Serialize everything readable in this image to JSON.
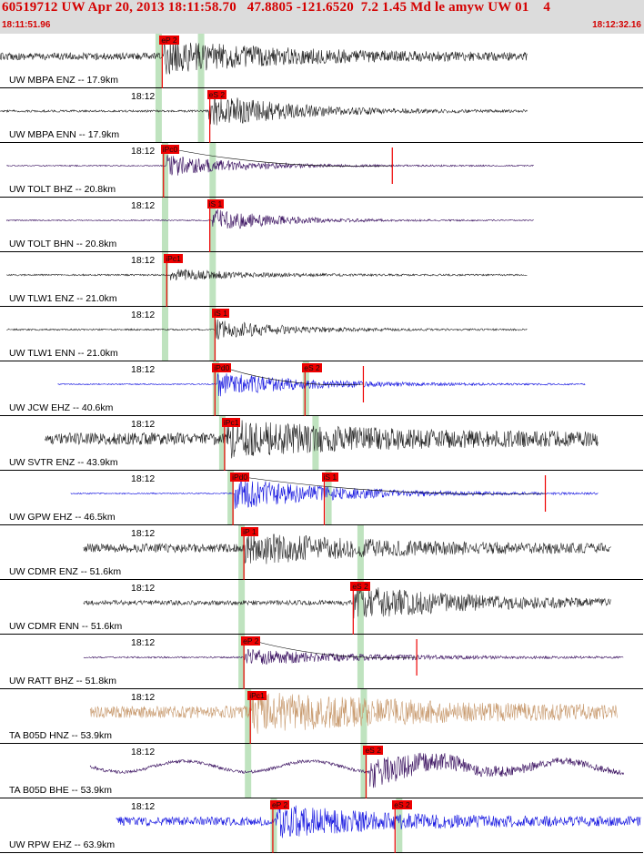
{
  "header": {
    "title": "60519712 UW Apr 20, 2013 18:11:58.70   47.8805 -121.6520  7.2 1.45 Md le amyw UW 01    4",
    "time_start": "18:11:51.96",
    "time_end": "18:12:32.16"
  },
  "colors": {
    "header_bg": "#dcdcdc",
    "header_text": "#d40000",
    "pick": "#ee0000",
    "theory_band": "#bfe3bf"
  },
  "tick_label": "18:12",
  "traces": [
    {
      "label": "UW MBPA ENZ -- 17.9km",
      "color": "#222222",
      "start": 0.0,
      "end": 0.82,
      "noise": 0.18,
      "amp": 0.75,
      "onset": 0.255,
      "coda": 0.6,
      "pick": {
        "text": "eP 2",
        "pos": 0.248
      },
      "bands": [
        0.246,
        0.312
      ]
    },
    {
      "label": "UW MBPA ENN -- 17.9km",
      "color": "#222222",
      "start": 0.0,
      "end": 0.82,
      "noise": 0.05,
      "amp": 0.9,
      "onset": 0.325,
      "coda": 0.4,
      "pick": {
        "text": "eS 2",
        "pos": 0.322
      },
      "bands": [
        0.246,
        0.312
      ]
    },
    {
      "label": "UW TOLT BHZ -- 20.8km",
      "color": "#3a1160",
      "start": 0.01,
      "end": 0.83,
      "noise": 0.03,
      "amp": 0.55,
      "onset": 0.258,
      "coda": 0.35,
      "pick": {
        "text": "iPc0",
        "pos": 0.25
      },
      "bands": [
        0.256,
        0.33
      ],
      "spike": 0.61
    },
    {
      "label": "UW TOLT BHN -- 20.8km",
      "color": "#3a1160",
      "start": 0.01,
      "end": 0.83,
      "noise": 0.03,
      "amp": 0.6,
      "onset": 0.33,
      "coda": 0.3,
      "pick": {
        "text": "iS 1",
        "pos": 0.322
      },
      "bands": [
        0.256,
        0.33
      ]
    },
    {
      "label": "UW TLW1 ENZ -- 21.0km",
      "color": "#222222",
      "start": 0.01,
      "end": 0.82,
      "noise": 0.04,
      "amp": 0.3,
      "onset": 0.262,
      "coda": 0.35,
      "pick": {
        "text": "iPc1",
        "pos": 0.255
      },
      "bands": [
        0.256,
        0.33
      ]
    },
    {
      "label": "UW TLW1 ENN -- 21.0km",
      "color": "#222222",
      "start": 0.01,
      "end": 0.82,
      "noise": 0.04,
      "amp": 0.55,
      "onset": 0.335,
      "coda": 0.3,
      "pick": {
        "text": "iS 1",
        "pos": 0.33
      },
      "bands": [
        0.256,
        0.33
      ]
    },
    {
      "label": "UW JCW EHZ -- 40.6km",
      "color": "#1414e0",
      "start": 0.09,
      "end": 0.91,
      "noise": 0.03,
      "amp": 0.6,
      "onset": 0.338,
      "coda": 0.45,
      "pick": {
        "text": "iPd0",
        "pos": 0.33
      },
      "pick2": {
        "text": "eS 2",
        "pos": 0.47
      },
      "bands": [
        0.335,
        0.475
      ],
      "spike": 0.565
    },
    {
      "label": "UW SVTR ENZ -- 43.9km",
      "color": "#222222",
      "start": 0.07,
      "end": 0.93,
      "noise": 0.3,
      "amp": 0.7,
      "onset": 0.352,
      "coda": 0.8,
      "pick": {
        "text": "iPc1",
        "pos": 0.345
      },
      "bands": [
        0.345,
        0.49
      ]
    },
    {
      "label": "UW GPW EHZ -- 46.5km",
      "color": "#1414e0",
      "start": 0.11,
      "end": 0.93,
      "noise": 0.03,
      "amp": 0.8,
      "onset": 0.365,
      "coda": 0.5,
      "pick": {
        "text": "iPd0",
        "pos": 0.358
      },
      "pick2": {
        "text": "iS 1",
        "pos": 0.5
      },
      "bands": [
        0.358,
        0.51
      ],
      "spike": 0.848
    },
    {
      "label": "UW CDMR ENZ -- 51.6km",
      "color": "#2e2e2e",
      "start": 0.13,
      "end": 0.95,
      "noise": 0.22,
      "amp": 0.7,
      "onset": 0.38,
      "coda": 0.6,
      "pick": {
        "text": "iP 1",
        "pos": 0.375
      },
      "bands": [
        0.375,
        0.56
      ]
    },
    {
      "label": "UW CDMR ENN -- 51.6km",
      "color": "#2e2e2e",
      "start": 0.13,
      "end": 0.95,
      "noise": 0.12,
      "amp": 0.8,
      "onset": 0.55,
      "coda": 0.6,
      "pick": {
        "text": "eS 2",
        "pos": 0.545
      },
      "bands": [
        0.375,
        0.56
      ]
    },
    {
      "label": "UW RATT BHZ -- 51.8km",
      "color": "#3a1160",
      "start": 0.13,
      "end": 0.97,
      "noise": 0.04,
      "amp": 0.4,
      "onset": 0.38,
      "coda": 0.55,
      "pick": {
        "text": "eP 2",
        "pos": 0.375
      },
      "bands": [
        0.375,
        0.56
      ],
      "spike": 0.648
    },
    {
      "label": "TA B05D HNZ -- 53.9km",
      "color": "#c89a6e",
      "start": 0.14,
      "end": 0.96,
      "noise": 0.3,
      "amp": 0.85,
      "onset": 0.392,
      "coda": 0.8,
      "pick": {
        "text": "iPc1",
        "pos": 0.385
      },
      "bands": [
        0.385,
        0.565
      ]
    },
    {
      "label": "TA B05D BHE -- 53.9km",
      "color": "#3a1160",
      "start": 0.14,
      "end": 0.97,
      "noise": 0.08,
      "amp": 0.75,
      "onset": 0.575,
      "coda": 0.5,
      "pick": {
        "text": "eS 2",
        "pos": 0.565
      },
      "bands": [
        0.385,
        0.565
      ],
      "wave": true
    },
    {
      "label": "UW RPW EHZ -- 63.9km",
      "color": "#1414e0",
      "start": 0.18,
      "end": 1.0,
      "noise": 0.22,
      "amp": 0.7,
      "onset": 0.43,
      "coda": 0.5,
      "pick": {
        "text": "eP 2",
        "pos": 0.42
      },
      "pick2": {
        "text": "eS 2",
        "pos": 0.61
      },
      "bands": [
        0.425,
        0.62
      ]
    }
  ],
  "tick_pos": 0.205
}
